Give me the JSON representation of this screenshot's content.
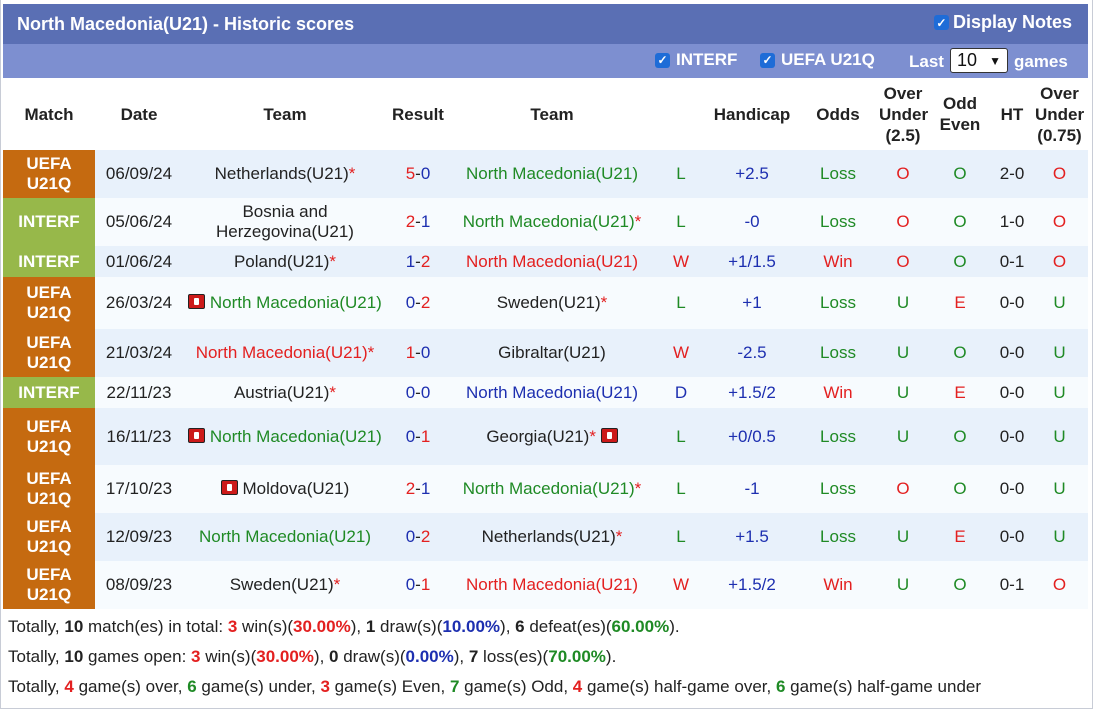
{
  "title": "North Macedonia(U21) - Historic scores",
  "display_notes_label": "Display Notes",
  "filters": {
    "interf_label": "INTERF",
    "uefa_label": "UEFA U21Q",
    "last_label": "Last",
    "games_value": "10",
    "games_label": "games"
  },
  "headers": {
    "match": "Match",
    "date": "Date",
    "team1": "Team",
    "result": "Result",
    "team2": "Team",
    "handicap": "Handicap",
    "odds": "Odds",
    "ou_l1": "Over",
    "ou_l2": "Under",
    "ou_l3": "(2.5)",
    "oe_l1": "Odd",
    "oe_l2": "Even",
    "ht": "HT",
    "ou2_l1": "Over",
    "ou2_l2": "Under",
    "ou2_l3": "(0.75)"
  },
  "rows": [
    {
      "league": [
        "UEFA",
        "U21Q"
      ],
      "league_type": "uefa",
      "date": "06/09/24",
      "home": "Netherlands(U21)",
      "home_star": "*",
      "home_flag": false,
      "home_color": "black",
      "score_home": "5",
      "score_away": "0",
      "away": "North Macedonia(U21)",
      "away_star": "",
      "away_flag": false,
      "away_color": "green",
      "wl": "L",
      "handicap": "+2.5",
      "odds": "Loss",
      "ou": "O",
      "oe": "O",
      "ht": "2-0",
      "ou2": "O"
    },
    {
      "league": [
        "INTERF"
      ],
      "league_type": "interf",
      "date": "05/06/24",
      "home": "Bosnia and Herzegovina(U21)",
      "home_star": "",
      "home_flag": false,
      "home_color": "black",
      "score_home": "2",
      "score_away": "1",
      "away": "North Macedonia(U21)",
      "away_star": "*",
      "away_flag": false,
      "away_color": "green",
      "wl": "L",
      "handicap": "-0",
      "odds": "Loss",
      "ou": "O",
      "oe": "O",
      "ht": "1-0",
      "ou2": "O"
    },
    {
      "league": [
        "INTERF"
      ],
      "league_type": "interf",
      "date": "01/06/24",
      "home": "Poland(U21)",
      "home_star": "*",
      "home_flag": false,
      "home_color": "black",
      "score_home": "1",
      "score_away": "2",
      "away": "North Macedonia(U21)",
      "away_star": "",
      "away_flag": false,
      "away_color": "red",
      "wl": "W",
      "handicap": "+1/1.5",
      "odds": "Win",
      "ou": "O",
      "oe": "O",
      "ht": "0-1",
      "ou2": "O"
    },
    {
      "league": [
        "UEFA",
        "U21Q"
      ],
      "league_type": "uefa",
      "date": "26/03/24",
      "home": "North Macedonia(U21)",
      "home_star": "",
      "home_flag": true,
      "home_color": "green",
      "score_home": "0",
      "score_away": "2",
      "away": "Sweden(U21)",
      "away_star": "*",
      "away_flag": false,
      "away_color": "black",
      "wl": "L",
      "handicap": "+1",
      "odds": "Loss",
      "ou": "U",
      "oe": "E",
      "ht": "0-0",
      "ou2": "U"
    },
    {
      "league": [
        "UEFA",
        "U21Q"
      ],
      "league_type": "uefa",
      "date": "21/03/24",
      "home": "North Macedonia(U21)",
      "home_star": "*",
      "home_flag": false,
      "home_color": "red",
      "score_home": "1",
      "score_away": "0",
      "away": "Gibraltar(U21)",
      "away_star": "",
      "away_flag": false,
      "away_color": "black",
      "wl": "W",
      "handicap": "-2.5",
      "odds": "Loss",
      "ou": "U",
      "oe": "O",
      "ht": "0-0",
      "ou2": "U"
    },
    {
      "league": [
        "INTERF"
      ],
      "league_type": "interf",
      "date": "22/11/23",
      "home": "Austria(U21)",
      "home_star": "*",
      "home_flag": false,
      "home_color": "black",
      "score_home": "0",
      "score_away": "0",
      "away": "North Macedonia(U21)",
      "away_star": "",
      "away_flag": false,
      "away_color": "blue",
      "wl": "D",
      "handicap": "+1.5/2",
      "odds": "Win",
      "ou": "U",
      "oe": "E",
      "ht": "0-0",
      "ou2": "U"
    },
    {
      "league": [
        "UEFA",
        "U21Q"
      ],
      "league_type": "uefa",
      "date": "16/11/23",
      "home": "North Macedonia(U21)",
      "home_star": "",
      "home_flag": true,
      "home_color": "green",
      "score_home": "0",
      "score_away": "1",
      "away": "Georgia(U21)",
      "away_star": "*",
      "away_flag": true,
      "away_color": "black",
      "wl": "L",
      "handicap": "+0/0.5",
      "odds": "Loss",
      "ou": "U",
      "oe": "O",
      "ht": "0-0",
      "ou2": "U"
    },
    {
      "league": [
        "UEFA",
        "U21Q"
      ],
      "league_type": "uefa",
      "date": "17/10/23",
      "home": "Moldova(U21)",
      "home_star": "",
      "home_flag": true,
      "home_color": "black",
      "score_home": "2",
      "score_away": "1",
      "away": "North Macedonia(U21)",
      "away_star": "*",
      "away_flag": false,
      "away_color": "green",
      "wl": "L",
      "handicap": "-1",
      "odds": "Loss",
      "ou": "O",
      "oe": "O",
      "ht": "0-0",
      "ou2": "U"
    },
    {
      "league": [
        "UEFA",
        "U21Q"
      ],
      "league_type": "uefa",
      "date": "12/09/23",
      "home": "North Macedonia(U21)",
      "home_star": "",
      "home_flag": false,
      "home_color": "green",
      "score_home": "0",
      "score_away": "2",
      "away": "Netherlands(U21)",
      "away_star": "*",
      "away_flag": false,
      "away_color": "black",
      "wl": "L",
      "handicap": "+1.5",
      "odds": "Loss",
      "ou": "U",
      "oe": "E",
      "ht": "0-0",
      "ou2": "U"
    },
    {
      "league": [
        "UEFA",
        "U21Q"
      ],
      "league_type": "uefa",
      "date": "08/09/23",
      "home": "Sweden(U21)",
      "home_star": "*",
      "home_flag": false,
      "home_color": "black",
      "score_home": "0",
      "score_away": "1",
      "away": "North Macedonia(U21)",
      "away_star": "",
      "away_flag": false,
      "away_color": "red",
      "wl": "W",
      "handicap": "+1.5/2",
      "odds": "Win",
      "ou": "U",
      "oe": "O",
      "ht": "0-1",
      "ou2": "O"
    }
  ],
  "totals": [
    [
      {
        "t": "Totally, "
      },
      {
        "t": "10",
        "s": "b"
      },
      {
        "t": " match(es) in total: "
      },
      {
        "t": "3",
        "s": "r"
      },
      {
        "t": " win(s)("
      },
      {
        "t": "30.00%",
        "s": "r"
      },
      {
        "t": "), "
      },
      {
        "t": "1",
        "s": "b"
      },
      {
        "t": " draw(s)("
      },
      {
        "t": "10.00%",
        "s": "bl"
      },
      {
        "t": "), "
      },
      {
        "t": "6",
        "s": "b"
      },
      {
        "t": " defeat(es)("
      },
      {
        "t": "60.00%",
        "s": "g"
      },
      {
        "t": ")."
      }
    ],
    [
      {
        "t": "Totally, "
      },
      {
        "t": "10",
        "s": "b"
      },
      {
        "t": " games open: "
      },
      {
        "t": "3",
        "s": "r"
      },
      {
        "t": " win(s)("
      },
      {
        "t": "30.00%",
        "s": "r"
      },
      {
        "t": "), "
      },
      {
        "t": "0",
        "s": "b"
      },
      {
        "t": " draw(s)("
      },
      {
        "t": "0.00%",
        "s": "bl"
      },
      {
        "t": "), "
      },
      {
        "t": "7",
        "s": "b"
      },
      {
        "t": " loss(es)("
      },
      {
        "t": "70.00%",
        "s": "g"
      },
      {
        "t": ")."
      }
    ],
    [
      {
        "t": "Totally, "
      },
      {
        "t": "4",
        "s": "r"
      },
      {
        "t": " game(s) over, "
      },
      {
        "t": "6",
        "s": "g"
      },
      {
        "t": " game(s) under, "
      },
      {
        "t": "3",
        "s": "r"
      },
      {
        "t": " game(s) Even, "
      },
      {
        "t": "7",
        "s": "g"
      },
      {
        "t": " game(s) Odd, "
      },
      {
        "t": "4",
        "s": "r"
      },
      {
        "t": " game(s) half-game over, "
      },
      {
        "t": "6",
        "s": "g"
      },
      {
        "t": " game(s) half-game under"
      }
    ]
  ],
  "colors": {
    "title_bg": "#5a6fb4",
    "filter_bg": "#7d8fd0",
    "uefa": "#c56a10",
    "interf": "#97b84a",
    "win_red": "#e32020",
    "loss_green": "#1f8a25",
    "draw_blue": "#1d2fb0"
  }
}
